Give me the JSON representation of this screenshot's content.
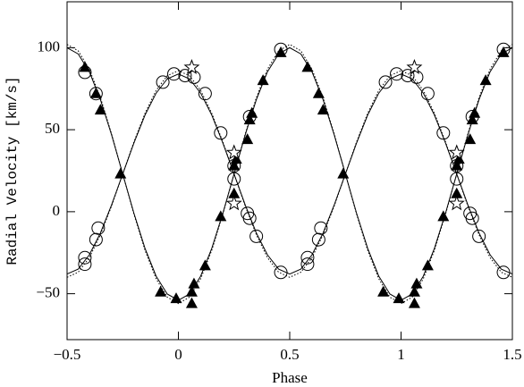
{
  "chart_data": {
    "type": "scatter",
    "xlabel": "Phase",
    "ylabel": "Radial Velocity [km/s]",
    "xlim": [
      -0.5,
      1.5
    ],
    "ylim": [
      -78,
      128
    ],
    "xticks": [
      {
        "value": -0.5,
        "label": "−0.5"
      },
      0,
      0.5,
      1,
      1.5
    ],
    "yticks": [
      {
        "value": -50,
        "label": "−50"
      },
      0,
      50,
      100
    ],
    "x": [
      -0.5,
      -0.45,
      -0.4,
      -0.35,
      -0.3,
      -0.25,
      -0.2,
      -0.15,
      -0.1,
      -0.05,
      0,
      0.05,
      0.1,
      0.15,
      0.2,
      0.25,
      0.3,
      0.35,
      0.4,
      0.45,
      0.5,
      0.55,
      0.6,
      0.65,
      0.7,
      0.75,
      0.8,
      0.85,
      0.9,
      0.95,
      1,
      1.05,
      1.1,
      1.15,
      1.2,
      1.25,
      1.3,
      1.35,
      1.4,
      1.45,
      1.5
    ],
    "lines": [
      {
        "style": "solid",
        "color": "#000000",
        "values": [
          100,
          96.2,
          85.3,
          68.3,
          46.8,
          23,
          -0.8,
          -22.3,
          -39.3,
          -50.2,
          -54,
          -50.2,
          -39.3,
          -22.3,
          -0.8,
          23,
          46.8,
          68.3,
          85.3,
          96.2,
          100,
          96.2,
          85.3,
          68.3,
          46.8,
          23,
          -0.8,
          -22.3,
          -39.3,
          -50.2,
          -54,
          -50.2,
          -39.3,
          -22.3,
          -0.8,
          23,
          46.8,
          68.3,
          85.3,
          96.2,
          100
        ]
      },
      {
        "style": "solid",
        "color": "#000000",
        "values": [
          -38,
          -35,
          -26.3,
          -12.9,
          4.2,
          23,
          41.8,
          58.9,
          72.3,
          81,
          84,
          81,
          72.3,
          58.9,
          41.8,
          23,
          4.2,
          -12.9,
          -26.3,
          -35,
          -38,
          -35,
          -26.3,
          -12.9,
          4.2,
          23,
          41.8,
          58.9,
          72.3,
          81,
          84,
          81,
          72.3,
          58.9,
          41.8,
          23,
          4.2,
          -12.9,
          -26.3,
          -35,
          -38
        ]
      },
      {
        "style": "dotted",
        "color": "#000000",
        "values": [
          102,
          98.1,
          86.9,
          69.5,
          47.4,
          23,
          -1.4,
          -23.5,
          -40.9,
          -52.1,
          -56,
          -52.1,
          -40.9,
          -23.5,
          -1.4,
          23,
          47.4,
          69.5,
          86.9,
          98.1,
          102,
          98.1,
          86.9,
          69.5,
          47.4,
          23,
          -1.4,
          -23.5,
          -40.9,
          -52.1,
          -56,
          -52.1,
          -40.9,
          -23.5,
          -1.4,
          23,
          47.4,
          69.5,
          86.9,
          98.1,
          102
        ]
      },
      {
        "style": "dotted",
        "color": "#000000",
        "values": [
          -40,
          -36.9,
          -28,
          -14,
          3.5,
          23,
          42.5,
          60,
          74,
          82.9,
          86,
          82.9,
          74,
          60,
          42.5,
          23,
          3.5,
          -14,
          -28,
          -36.9,
          -40,
          -36.9,
          -28,
          -14,
          3.5,
          23,
          42.5,
          60,
          74,
          82.9,
          86,
          82.9,
          74,
          60,
          42.5,
          23,
          3.5,
          -14,
          -28,
          -36.9,
          -40
        ]
      }
    ],
    "series": [
      {
        "marker": "circle",
        "color": "#000000",
        "x": [
          -0.42,
          -0.42,
          -0.37,
          -0.36,
          -0.42,
          -0.37,
          -0.07,
          -0.02,
          0.03,
          0.07,
          0.12,
          0.19,
          0.25,
          0.25,
          0.31,
          0.32,
          0.32,
          0.35,
          0.46,
          0.46,
          0.58,
          0.58,
          0.63,
          0.64,
          0.93,
          0.98,
          1.03,
          1.07,
          1.12,
          1.19,
          1.25,
          1.25,
          1.31,
          1.32,
          1.32,
          1.35,
          1.46,
          1.46
        ],
        "values": [
          -32,
          -28,
          -17,
          -10,
          85,
          72,
          79,
          84,
          83,
          82,
          72,
          48,
          28,
          20,
          -1,
          -4,
          58,
          -15,
          -37,
          99,
          -32,
          -28,
          -17,
          -10,
          79,
          84,
          83,
          82,
          72,
          48,
          28,
          20,
          -1,
          -4,
          58,
          -15,
          -37,
          99
        ]
      },
      {
        "marker": "triangle",
        "color": "#000000",
        "x": [
          -0.42,
          -0.37,
          -0.35,
          -0.26,
          -0.08,
          -0.01,
          0.06,
          0.06,
          0.07,
          0.12,
          0.19,
          0.25,
          0.25,
          0.26,
          0.31,
          0.32,
          0.33,
          0.38,
          0.46,
          0.58,
          0.63,
          0.65,
          0.74,
          0.92,
          0.99,
          1.06,
          1.06,
          1.07,
          1.12,
          1.19,
          1.25,
          1.25,
          1.26,
          1.31,
          1.32,
          1.33,
          1.38,
          1.46
        ],
        "values": [
          88,
          72,
          62,
          23,
          -49,
          -53,
          -56,
          -49,
          -44,
          -33,
          -3,
          11,
          28,
          32,
          44,
          56,
          60,
          80,
          97,
          88,
          72,
          62,
          23,
          -49,
          -53,
          -56,
          -49,
          -44,
          -33,
          -3,
          11,
          28,
          32,
          44,
          56,
          60,
          80,
          97
        ]
      },
      {
        "marker": "star",
        "color": "#000000",
        "x": [
          0.06,
          0.25,
          0.25,
          1.06,
          1.25,
          1.25
        ],
        "values": [
          88,
          36,
          5,
          88,
          36,
          5
        ]
      }
    ]
  }
}
